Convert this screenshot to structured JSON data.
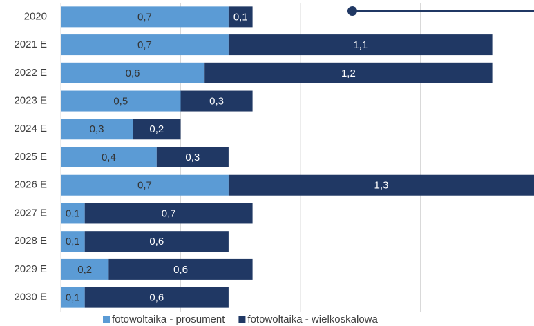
{
  "chart_data": {
    "type": "stacked_barh",
    "categories": [
      "2020",
      "2021 E",
      "2022 E",
      "2023 E",
      "2024 E",
      "2025 E",
      "2026 E",
      "2027 E",
      "2028 E",
      "2029 E",
      "2030 E"
    ],
    "series": [
      {
        "name": "fotowoltaika - prosument",
        "color": "#5b9bd5",
        "values": [
          0.7,
          0.7,
          0.6,
          0.5,
          0.3,
          0.4,
          0.7,
          0.1,
          0.1,
          0.2,
          0.1
        ],
        "value_labels": [
          "0,7",
          "0,7",
          "0,6",
          "0,5",
          "0,3",
          "0,4",
          "0,7",
          "0,1",
          "0,1",
          "0,2",
          "0,1"
        ]
      },
      {
        "name": "fotowoltaika - wielkoskalowa",
        "color": "#203864",
        "values": [
          0.1,
          1.1,
          1.2,
          0.3,
          0.2,
          0.3,
          1.3,
          0.7,
          0.6,
          0.6,
          0.6
        ],
        "value_labels": [
          "0,1",
          "1,1",
          "1,2",
          "0,3",
          "0,2",
          "0,3",
          "1,3",
          "0,7",
          "0,6",
          "0,6",
          "0,6"
        ]
      }
    ],
    "xlim": [
      0,
      2
    ],
    "xticks": [
      0,
      0.5,
      1,
      1.5
    ],
    "grid": true,
    "legend": "bottom"
  }
}
